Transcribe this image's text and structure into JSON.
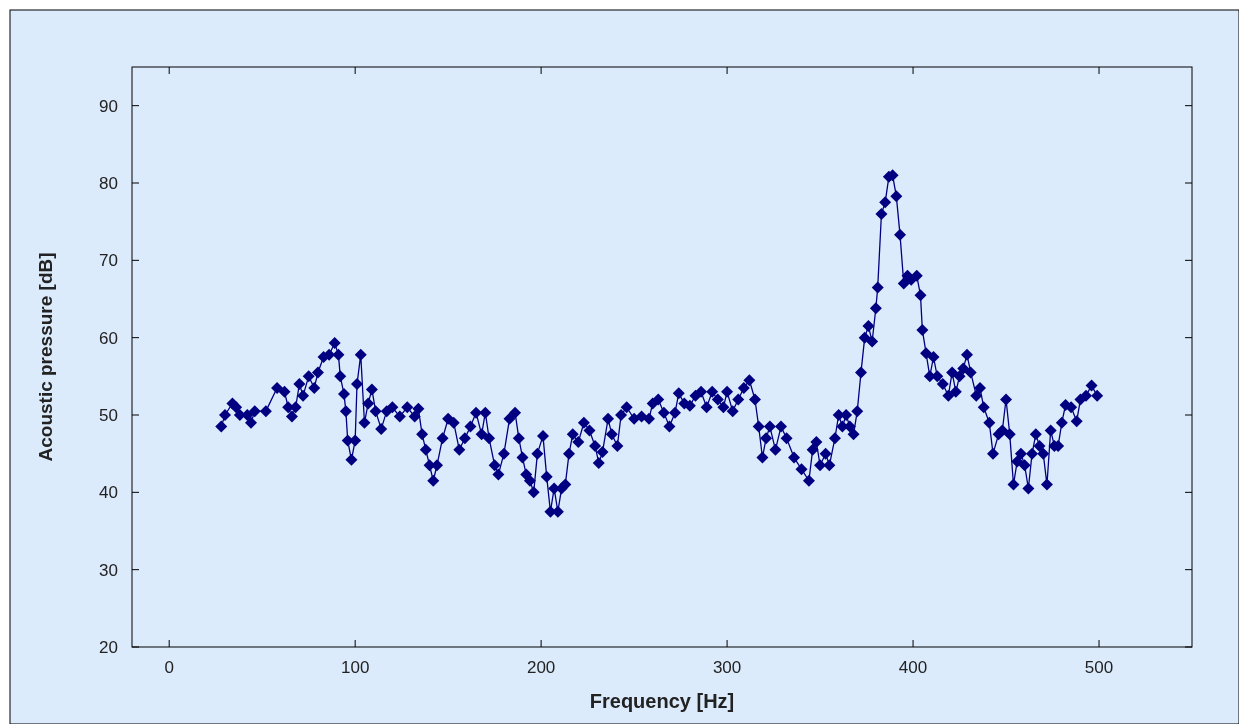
{
  "chart_data": {
    "type": "line",
    "xlabel": "Frequency [Hz]",
    "ylabel": "Acoustic pressure [dB]",
    "xlim": [
      -20,
      550
    ],
    "ylim": [
      20,
      95
    ],
    "xticks": [
      0,
      100,
      200,
      300,
      400,
      500
    ],
    "yticks": [
      20,
      30,
      40,
      50,
      60,
      70,
      80,
      90
    ],
    "grid": false,
    "marker": "diamond",
    "line_style": "solid",
    "x": [
      28,
      30,
      34,
      36,
      38,
      42,
      44,
      46,
      52,
      58,
      62,
      64,
      66,
      68,
      70,
      72,
      75,
      78,
      80,
      83,
      86,
      89,
      91,
      92,
      94,
      95,
      96,
      98,
      100,
      101,
      103,
      105,
      107,
      109,
      111,
      114,
      117,
      120,
      124,
      128,
      132,
      134,
      136,
      138,
      140,
      142,
      144,
      147,
      150,
      153,
      156,
      159,
      162,
      165,
      168,
      170,
      172,
      175,
      177,
      180,
      183,
      186,
      188,
      190,
      192,
      194,
      196,
      198,
      201,
      203,
      205,
      207,
      209,
      211,
      213,
      215,
      217,
      220,
      223,
      226,
      229,
      231,
      233,
      236,
      238,
      241,
      243,
      246,
      250,
      254,
      258,
      260,
      263,
      266,
      269,
      272,
      274,
      277,
      280,
      283,
      286,
      289,
      292,
      295,
      298,
      300,
      303,
      306,
      309,
      312,
      315,
      317,
      319,
      321,
      323,
      326,
      329,
      332,
      336,
      340,
      344,
      346,
      348,
      350,
      353,
      355,
      358,
      360,
      362,
      364,
      366,
      368,
      370,
      372,
      374,
      376,
      378,
      380,
      381,
      383,
      385,
      387,
      389,
      391,
      393,
      395,
      397,
      399,
      402,
      404,
      405,
      407,
      409,
      411,
      413,
      416,
      419,
      421,
      423,
      425,
      427,
      429,
      431,
      434,
      436,
      438,
      441,
      443,
      446,
      448,
      450,
      452,
      454,
      456,
      458,
      460,
      462,
      464,
      466,
      468,
      470,
      472,
      474,
      476,
      478,
      480,
      482,
      485,
      488,
      490,
      493,
      496,
      499
    ],
    "series": [
      {
        "color": "#000080",
        "values": [
          48.5,
          50,
          51.5,
          51,
          50,
          50,
          49,
          50.5,
          50.5,
          53.5,
          53,
          51,
          49.8,
          51,
          54,
          52.5,
          55,
          53.5,
          55.5,
          57.5,
          57.8,
          59.3,
          57.8,
          55,
          52.7,
          50.5,
          46.7,
          44.2,
          46.7,
          54,
          57.8,
          49,
          51.5,
          53.3,
          50.5,
          48.2,
          50.5,
          51,
          49.8,
          51,
          49.8,
          50.8,
          47.5,
          45.5,
          43.5,
          41.5,
          43.5,
          47,
          49.5,
          49,
          45.5,
          47,
          48.5,
          50.3,
          47.5,
          50.3,
          47,
          43.5,
          42.3,
          45,
          49.5,
          50.3,
          47,
          44.5,
          42.3,
          41.5,
          40,
          45,
          47.3,
          42,
          37.5,
          40.5,
          37.5,
          40.5,
          41,
          45,
          47.5,
          46.5,
          49,
          48,
          46,
          43.8,
          45.2,
          49.5,
          47.5,
          46,
          50,
          51,
          49.5,
          49.8,
          49.5,
          51.5,
          52,
          50.3,
          48.5,
          50.3,
          52.8,
          51.5,
          51.2,
          52.5,
          53,
          51,
          53,
          52,
          51,
          53,
          50.5,
          52,
          53.5,
          54.5,
          52,
          48.5,
          44.5,
          47,
          48.5,
          45.5,
          48.5,
          47,
          44.5,
          43,
          41.5,
          45.5,
          46.5,
          43.5,
          45,
          43.5,
          47,
          50,
          48.5,
          50,
          48.5,
          47.5,
          50.5,
          55.5,
          60,
          61.5,
          59.5,
          63.8,
          66.5,
          76,
          77.5,
          80.8,
          81,
          78.3,
          73.3,
          67,
          68,
          67.5,
          68,
          65.5,
          61,
          58,
          55,
          57.5,
          55,
          54,
          52.5,
          55.5,
          53,
          55,
          56,
          57.8,
          55.5,
          52.5,
          53.5,
          51,
          49,
          45,
          47.5,
          48,
          52,
          47.5,
          41,
          44,
          45,
          43.5,
          40.5,
          45,
          47.5,
          46,
          45,
          41,
          48,
          46,
          46,
          49,
          51.3,
          51,
          49.2,
          52,
          52.5,
          53.8,
          52.5
        ]
      }
    ]
  }
}
